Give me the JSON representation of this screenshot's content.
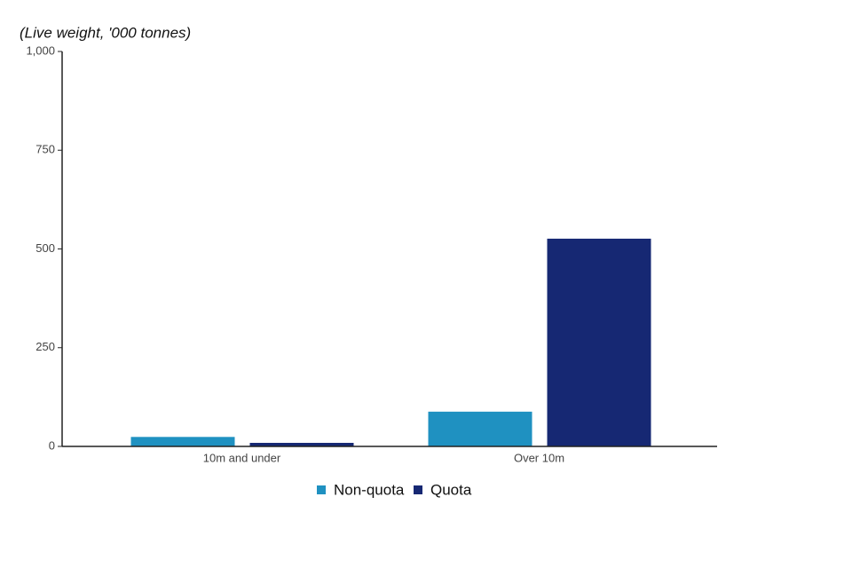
{
  "chart_data": {
    "type": "bar",
    "title": "(Live weight, '000 tonnes)",
    "categories": [
      "10m and under",
      "Over 10m"
    ],
    "series": [
      {
        "name": "Non-quota",
        "color": "#1f91c1",
        "values": [
          24,
          88
        ]
      },
      {
        "name": "Quota",
        "color": "#162873",
        "values": [
          9,
          526
        ]
      }
    ],
    "ylim": [
      0,
      1000
    ],
    "yticks": [
      0,
      250,
      500,
      750,
      {
        "value": 1000,
        "label": "1,000"
      }
    ],
    "grid": false,
    "legend": "bottom"
  }
}
